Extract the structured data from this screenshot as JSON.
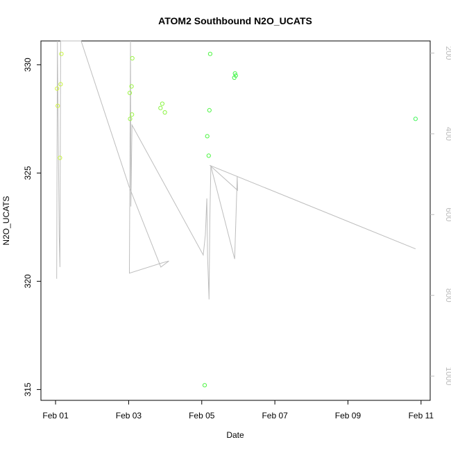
{
  "chart_data": {
    "type": "scatter",
    "title": "ATOM2 Southbound N2O_UCATS",
    "xlabel": "Date",
    "ylabel": "N2O_UCATS",
    "x_ticks": [
      {
        "label": "Feb 01",
        "day": 1
      },
      {
        "label": "Feb 03",
        "day": 3
      },
      {
        "label": "Feb 05",
        "day": 5
      },
      {
        "label": "Feb 07",
        "day": 7
      },
      {
        "label": "Feb 09",
        "day": 9
      },
      {
        "label": "Feb 11",
        "day": 11
      }
    ],
    "xlim": [
      0.6,
      11.25
    ],
    "ylim": [
      314.5,
      331.1
    ],
    "y_ticks": [
      315,
      320,
      325,
      330
    ],
    "right_axis": {
      "ticks": [
        200,
        400,
        600,
        800,
        1000
      ],
      "lim": [
        170,
        1060
      ],
      "reversed": true
    },
    "colors": {
      "line": "#bdbdbd",
      "right_axis": "#bdbdbd"
    },
    "points": [
      {
        "x": 1.04,
        "y": 328.9,
        "color": "#d4f542"
      },
      {
        "x": 1.06,
        "y": 328.1,
        "color": "#d4f542"
      },
      {
        "x": 1.12,
        "y": 325.7,
        "color": "#c8f542"
      },
      {
        "x": 1.14,
        "y": 329.1,
        "color": "#c8f542"
      },
      {
        "x": 1.16,
        "y": 330.5,
        "color": "#c8f542"
      },
      {
        "x": 3.03,
        "y": 328.7,
        "color": "#9af542"
      },
      {
        "x": 3.04,
        "y": 327.5,
        "color": "#9af542"
      },
      {
        "x": 3.08,
        "y": 329.0,
        "color": "#9af542"
      },
      {
        "x": 3.09,
        "y": 327.7,
        "color": "#9af542"
      },
      {
        "x": 3.1,
        "y": 330.3,
        "color": "#9af542"
      },
      {
        "x": 3.87,
        "y": 328.0,
        "color": "#8af542"
      },
      {
        "x": 3.92,
        "y": 328.2,
        "color": "#8af542"
      },
      {
        "x": 3.99,
        "y": 327.8,
        "color": "#8af542"
      },
      {
        "x": 5.08,
        "y": 315.2,
        "color": "#4df542"
      },
      {
        "x": 5.15,
        "y": 326.7,
        "color": "#4df542"
      },
      {
        "x": 5.19,
        "y": 325.8,
        "color": "#4df542"
      },
      {
        "x": 5.21,
        "y": 327.9,
        "color": "#4df542"
      },
      {
        "x": 5.23,
        "y": 330.5,
        "color": "#4df542"
      },
      {
        "x": 5.89,
        "y": 329.4,
        "color": "#42f548"
      },
      {
        "x": 5.91,
        "y": 329.6,
        "color": "#42f548"
      },
      {
        "x": 5.93,
        "y": 329.5,
        "color": "#42f548"
      },
      {
        "x": 10.85,
        "y": 327.5,
        "color": "#42f55a"
      }
    ],
    "pressure_path": [
      [
        1.03,
        759
      ],
      [
        1.05,
        170
      ],
      [
        1.06,
        260
      ],
      [
        1.1,
        650
      ],
      [
        1.12,
        730
      ],
      [
        1.14,
        170
      ],
      [
        1.5,
        170
      ],
      [
        1.7,
        170
      ],
      [
        3.01,
        530
      ],
      [
        3.88,
        730
      ],
      [
        4.1,
        715
      ],
      [
        3.9,
        720
      ],
      [
        3.02,
        745
      ],
      [
        3.05,
        170
      ],
      [
        3.06,
        580
      ],
      [
        3.09,
        378
      ],
      [
        5.04,
        700
      ],
      [
        5.1,
        650
      ],
      [
        5.14,
        560
      ],
      [
        5.16,
        705
      ],
      [
        5.2,
        810
      ],
      [
        5.22,
        615
      ],
      [
        5.25,
        480
      ],
      [
        5.9,
        710
      ],
      [
        5.97,
        505
      ],
      [
        5.98,
        540
      ],
      [
        5.22,
        478
      ],
      [
        10.85,
        685
      ]
    ]
  }
}
